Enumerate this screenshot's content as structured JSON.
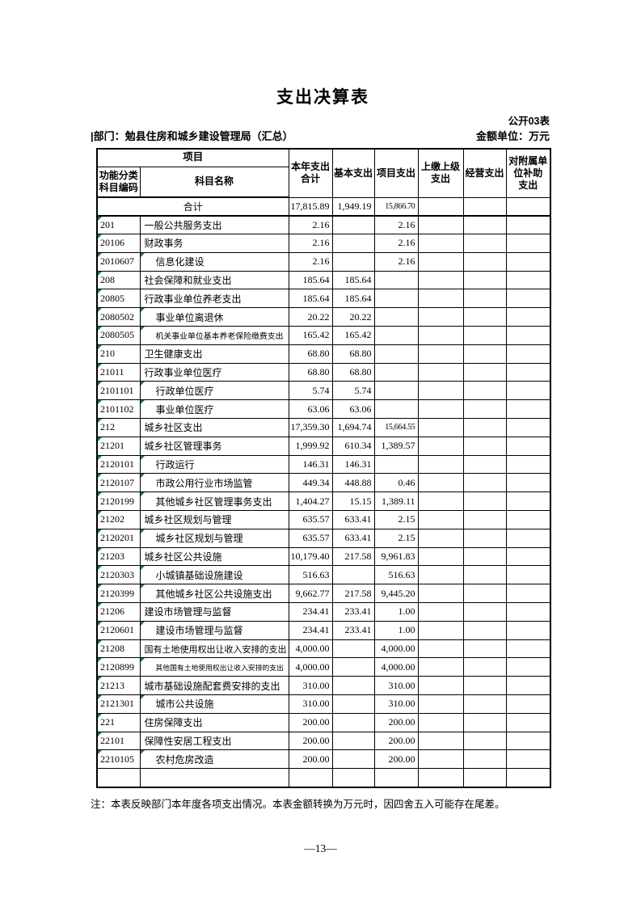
{
  "page": {
    "title": "支出决算表",
    "form_label": "公开03表",
    "dept_line": "|部门：勉县住房和城乡建设管理局（汇总）",
    "unit_label": "金额单位：万元",
    "note": "注：本表反映部门本年度各项支出情况。本表金额转换为万元时，因四舍五入可能存在尾差。",
    "page_number": "—13—"
  },
  "colors": {
    "excel_triangle_green": "#1e7a33",
    "border": "#000000",
    "background": "#ffffff"
  },
  "table": {
    "header": {
      "project": "项目",
      "code": "功能分类\n科目编码",
      "name": "科目名称",
      "cols": [
        "本年支出\n合计",
        "基本支出",
        "项目支出",
        "上缴上级\n支出",
        "经营支出",
        "对附属单\n位补助\n支出"
      ]
    },
    "total_row": {
      "label": "合计",
      "total": "17,815.89",
      "basic": "1,949.19",
      "project": "15,866.70"
    },
    "rows": [
      {
        "code": "201",
        "name": "一般公共服务支出",
        "indent": false,
        "total": "2.16",
        "basic": "",
        "project": "2.16"
      },
      {
        "code": "20106",
        "name": "财政事务",
        "indent": false,
        "total": "2.16",
        "basic": "",
        "project": "2.16"
      },
      {
        "code": "2010607",
        "name": "信息化建设",
        "indent": true,
        "total": "2.16",
        "basic": "",
        "project": "2.16"
      },
      {
        "code": "208",
        "name": "社会保障和就业支出",
        "indent": false,
        "total": "185.64",
        "basic": "185.64",
        "project": ""
      },
      {
        "code": "20805",
        "name": "行政事业单位养老支出",
        "indent": false,
        "total": "185.64",
        "basic": "185.64",
        "project": ""
      },
      {
        "code": "2080502",
        "name": "事业单位离退休",
        "indent": true,
        "total": "20.22",
        "basic": "20.22",
        "project": ""
      },
      {
        "code": "2080505",
        "name": "机关事业单位基本养老保险缴费支出",
        "indent": true,
        "total": "165.42",
        "basic": "165.42",
        "project": ""
      },
      {
        "code": "210",
        "name": "卫生健康支出",
        "indent": false,
        "total": "68.80",
        "basic": "68.80",
        "project": ""
      },
      {
        "code": "21011",
        "name": "行政事业单位医疗",
        "indent": false,
        "total": "68.80",
        "basic": "68.80",
        "project": ""
      },
      {
        "code": "2101101",
        "name": "行政单位医疗",
        "indent": true,
        "total": "5.74",
        "basic": "5.74",
        "project": ""
      },
      {
        "code": "2101102",
        "name": "事业单位医疗",
        "indent": true,
        "total": "63.06",
        "basic": "63.06",
        "project": ""
      },
      {
        "code": "212",
        "name": "城乡社区支出",
        "indent": false,
        "total": "17,359.30",
        "basic": "1,694.74",
        "project": "15,664.55"
      },
      {
        "code": "21201",
        "name": "城乡社区管理事务",
        "indent": false,
        "total": "1,999.92",
        "basic": "610.34",
        "project": "1,389.57"
      },
      {
        "code": "2120101",
        "name": "行政运行",
        "indent": true,
        "total": "146.31",
        "basic": "146.31",
        "project": ""
      },
      {
        "code": "2120107",
        "name": "市政公用行业市场监管",
        "indent": true,
        "total": "449.34",
        "basic": "448.88",
        "project": "0.46"
      },
      {
        "code": "2120199",
        "name": "其他城乡社区管理事务支出",
        "indent": true,
        "total": "1,404.27",
        "basic": "15.15",
        "project": "1,389.11"
      },
      {
        "code": "21202",
        "name": "城乡社区规划与管理",
        "indent": false,
        "total": "635.57",
        "basic": "633.41",
        "project": "2.15"
      },
      {
        "code": "2120201",
        "name": "城乡社区规划与管理",
        "indent": true,
        "total": "635.57",
        "basic": "633.41",
        "project": "2.15"
      },
      {
        "code": "21203",
        "name": "城乡社区公共设施",
        "indent": false,
        "total": "10,179.40",
        "basic": "217.58",
        "project": "9,961.83"
      },
      {
        "code": "2120303",
        "name": "小城镇基础设施建设",
        "indent": true,
        "total": "516.63",
        "basic": "",
        "project": "516.63"
      },
      {
        "code": "2120399",
        "name": "其他城乡社区公共设施支出",
        "indent": true,
        "total": "9,662.77",
        "basic": "217.58",
        "project": "9,445.20"
      },
      {
        "code": "21206",
        "name": "建设市场管理与监督",
        "indent": false,
        "total": "234.41",
        "basic": "233.41",
        "project": "1.00"
      },
      {
        "code": "2120601",
        "name": "建设市场管理与监督",
        "indent": true,
        "total": "234.41",
        "basic": "233.41",
        "project": "1.00"
      },
      {
        "code": "21208",
        "name": "国有土地使用权出让收入安排的支出",
        "indent": false,
        "total": "4,000.00",
        "basic": "",
        "project": "4,000.00"
      },
      {
        "code": "2120899",
        "name": "其他国有土地使用权出让收入安排的支出",
        "indent": true,
        "total": "4,000.00",
        "basic": "",
        "project": "4,000.00"
      },
      {
        "code": "21213",
        "name": "城市基础设施配套费安排的支出",
        "indent": false,
        "total": "310.00",
        "basic": "",
        "project": "310.00"
      },
      {
        "code": "2121301",
        "name": "城市公共设施",
        "indent": true,
        "total": "310.00",
        "basic": "",
        "project": "310.00"
      },
      {
        "code": "221",
        "name": "住房保障支出",
        "indent": false,
        "total": "200.00",
        "basic": "",
        "project": "200.00"
      },
      {
        "code": "22101",
        "name": "保障性安居工程支出",
        "indent": false,
        "total": "200.00",
        "basic": "",
        "project": "200.00"
      },
      {
        "code": "2210105",
        "name": "农村危房改造",
        "indent": true,
        "total": "200.00",
        "basic": "",
        "project": "200.00"
      },
      {
        "code": "",
        "name": "",
        "indent": false,
        "total": "",
        "basic": "",
        "project": ""
      }
    ]
  }
}
